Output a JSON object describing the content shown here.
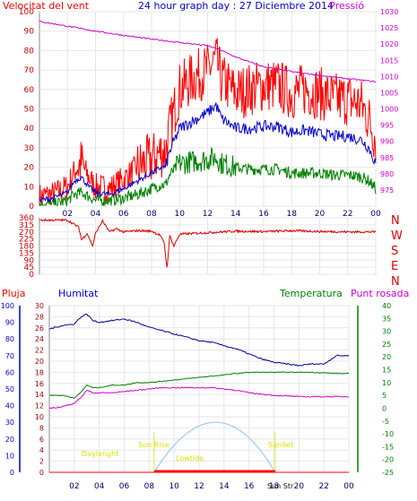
{
  "header": {
    "wind_label": "Velocitat del vent",
    "title": "24 hour graph day : 27 Diciembre 2014",
    "pressure_label": "Pressió"
  },
  "direction_labels": [
    "N",
    "W",
    "S",
    "E",
    "N"
  ],
  "lower_header": {
    "rain_label": "Pluja",
    "humidity_label": "Humitat",
    "temp_label": "Temperatura",
    "dew_label": "Punt rosada"
  },
  "sun_labels": {
    "daylength": "Daylenght",
    "sunrise": "Sun Rise",
    "sunset": "SunSet",
    "lowtide": "Lowtide",
    "sunstr": "Sun Str"
  },
  "x_ticks": [
    "02",
    "04",
    "06",
    "08",
    "10",
    "12",
    "14",
    "16",
    "18",
    "20",
    "22",
    "00"
  ],
  "colors": {
    "wind_gust": "#ff0000",
    "wind_avg": "#0000cc",
    "wind_low": "#008000",
    "pressure": "#cc00cc",
    "direction": "#dd0000",
    "humidity": "#000099",
    "temperature": "#008000",
    "dew": "#cc00cc",
    "rain": "#ff0000",
    "sun_arc": "#9cc8ee",
    "sun_text": "#dddd00",
    "rain_axis": "#0000cc",
    "hum_axis_text": "#990000",
    "temp_axis": "#008000"
  },
  "chart_data": [
    {
      "type": "line",
      "panel": "wind-pressure",
      "x_range_hours": [
        0,
        24
      ],
      "y_left": {
        "label": "Velocitat del vent",
        "range": [
          0,
          100
        ],
        "ticks": [
          0,
          10,
          20,
          30,
          40,
          50,
          60,
          70,
          80,
          90,
          100
        ]
      },
      "y_right": {
        "label": "Pressió",
        "range": [
          970,
          1030
        ],
        "ticks": [
          975,
          980,
          985,
          990,
          995,
          1000,
          1005,
          1010,
          1015,
          1020,
          1025,
          1030
        ]
      },
      "series": [
        {
          "key": "gust",
          "x": [
            0,
            1,
            2,
            2.5,
            3,
            3.5,
            4,
            5,
            6,
            7,
            8,
            8.7,
            9,
            9.3,
            10,
            11,
            12,
            12.6,
            13,
            14,
            15,
            16,
            17,
            18,
            19,
            20,
            21,
            22,
            23,
            23.5,
            24
          ],
          "values": [
            5,
            6,
            10,
            18,
            22,
            15,
            10,
            9,
            14,
            20,
            24,
            28,
            28,
            40,
            60,
            66,
            70,
            75,
            65,
            58,
            60,
            62,
            62,
            58,
            60,
            58,
            55,
            55,
            52,
            45,
            35
          ]
        },
        {
          "key": "avg",
          "x": [
            0,
            1,
            2,
            2.5,
            3,
            3.5,
            4,
            5,
            6,
            7,
            8,
            8.7,
            9,
            9.3,
            10,
            11,
            12,
            12.6,
            13,
            14,
            15,
            16,
            17,
            18,
            19,
            20,
            21,
            22,
            23,
            23.5,
            24
          ],
          "values": [
            3,
            4,
            7,
            13,
            15,
            10,
            7,
            6,
            9,
            13,
            17,
            20,
            20,
            28,
            40,
            44,
            48,
            52,
            45,
            40,
            40,
            41,
            41,
            38,
            39,
            37,
            36,
            36,
            34,
            30,
            22
          ]
        },
        {
          "key": "low",
          "x": [
            0,
            1,
            2,
            2.5,
            3,
            3.5,
            4,
            5,
            6,
            7,
            8,
            8.7,
            9,
            9.3,
            10,
            11,
            12,
            12.6,
            13,
            14,
            15,
            16,
            17,
            18,
            19,
            20,
            21,
            22,
            23,
            23.5,
            24
          ],
          "values": [
            1,
            1,
            3,
            6,
            7,
            5,
            3,
            3,
            4,
            6,
            9,
            11,
            11,
            16,
            22,
            23,
            24,
            25,
            22,
            20,
            19,
            19,
            19,
            17,
            17,
            17,
            16,
            16,
            15,
            13,
            9
          ]
        },
        {
          "key": "pressure",
          "unit": "hPa",
          "x": [
            0,
            2,
            4,
            6,
            8,
            10,
            12,
            13,
            14,
            16,
            18,
            20,
            22,
            24
          ],
          "values": [
            1027,
            1025.5,
            1024,
            1022.7,
            1021.5,
            1020.5,
            1019.5,
            1018,
            1016,
            1013,
            1011.5,
            1010.3,
            1009.3,
            1008.4
          ]
        }
      ]
    },
    {
      "type": "line",
      "panel": "wind-direction",
      "x_range_hours": [
        0,
        24
      ],
      "y_range": [
        0,
        360
      ],
      "y_ticks": [
        0,
        45,
        90,
        135,
        180,
        225,
        270,
        315,
        360
      ],
      "series": [
        {
          "key": "direction",
          "x": [
            0,
            2,
            2.8,
            3,
            3.4,
            3.8,
            4,
            4.5,
            5,
            5.5,
            6,
            7,
            8,
            8.6,
            8.9,
            9.1,
            9.3,
            9.6,
            10,
            12,
            14,
            16,
            18,
            20,
            22,
            24
          ],
          "values": [
            345,
            345,
            300,
            220,
            260,
            180,
            260,
            340,
            270,
            290,
            270,
            278,
            275,
            250,
            200,
            40,
            245,
            180,
            255,
            265,
            275,
            272,
            278,
            273,
            270,
            270
          ]
        }
      ]
    },
    {
      "type": "line",
      "panel": "rain-humidity-temperature",
      "x_range_hours": [
        0,
        24
      ],
      "y_rain": {
        "label": "Pluja",
        "range": [
          0,
          100
        ],
        "ticks": [
          0,
          10,
          20,
          30,
          40,
          50,
          60,
          70,
          80,
          90,
          100
        ]
      },
      "y_humidity": {
        "label": "Humitat",
        "range": [
          0,
          30
        ],
        "ticks": [
          0,
          2,
          4,
          6,
          8,
          10,
          12,
          14,
          16,
          18,
          20,
          22,
          24,
          26,
          28,
          30
        ]
      },
      "y_temperature": {
        "label": "Temperatura",
        "range": [
          -25,
          40
        ],
        "ticks": [
          -25,
          -20,
          -15,
          -10,
          -5,
          0,
          5,
          10,
          15,
          20,
          25,
          30,
          35,
          40
        ]
      },
      "series": [
        {
          "key": "humidity",
          "axis": "rain",
          "x": [
            0,
            1,
            2,
            2.5,
            3,
            3.5,
            4,
            5,
            6,
            7,
            8,
            9,
            10,
            11,
            12,
            13,
            14,
            15,
            16,
            17,
            18,
            19,
            20,
            21,
            22,
            23,
            24
          ],
          "values": [
            86,
            88,
            89,
            93,
            95,
            91,
            90,
            91,
            92,
            90,
            87,
            85,
            83,
            81,
            79,
            78,
            76,
            74,
            71,
            68,
            66,
            65,
            64,
            65,
            65,
            70,
            70
          ]
        },
        {
          "key": "temperature",
          "x": [
            0,
            1,
            2,
            2.5,
            3,
            3.5,
            4,
            5,
            6,
            7,
            8,
            9,
            10,
            11,
            12,
            13,
            14,
            15,
            16,
            17,
            18,
            19,
            20,
            21,
            22,
            23,
            24
          ],
          "values": [
            5,
            5,
            4,
            6,
            9,
            8,
            8,
            9,
            9,
            10,
            10,
            10.5,
            11,
            11.5,
            12,
            12.5,
            13,
            13.5,
            14,
            14,
            14,
            14,
            14,
            14,
            13.8,
            13.5,
            13.5
          ]
        },
        {
          "key": "dewpoint",
          "x": [
            0,
            1,
            2,
            2.5,
            3,
            3.5,
            4,
            5,
            6,
            7,
            8,
            9,
            10,
            11,
            12,
            13,
            14,
            15,
            16,
            17,
            18,
            19,
            20,
            21,
            22,
            23,
            24
          ],
          "values": [
            0,
            0.5,
            2,
            4,
            7,
            6,
            6,
            6,
            6.5,
            7,
            7.5,
            8,
            8,
            8,
            8,
            8,
            7.5,
            7,
            6,
            5.5,
            5,
            4.8,
            4.5,
            4.5,
            4.5,
            4.5,
            4.5
          ]
        },
        {
          "key": "rain",
          "axis": "rain",
          "x": [
            0,
            24
          ],
          "values": [
            0,
            0
          ]
        }
      ],
      "sun": {
        "sunrise_hour": 8.4,
        "sunset_hour": 18.1,
        "peak_hour": 13.4,
        "peak_value_humidity_axis": 9
      }
    }
  ]
}
